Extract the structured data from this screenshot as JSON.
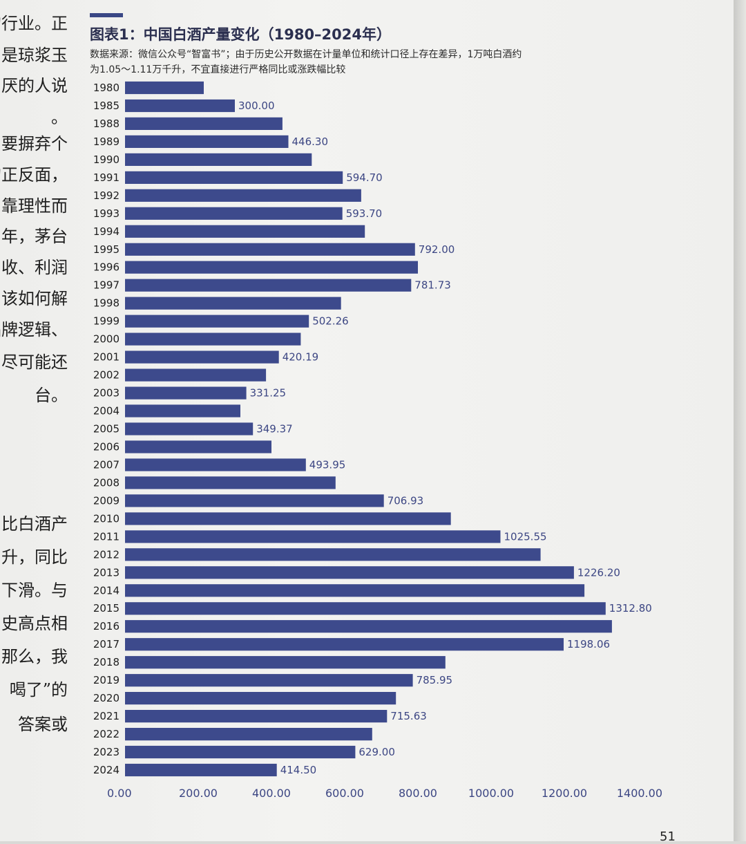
{
  "previous_page_text": [
    "的行业。正",
    "是琼浆玉",
    "厌的人说",
    "。",
    "要摒弃个",
    "的正反面，",
    "靠理性而",
    "年，茅台",
    "收、利润",
    "该如何解",
    "品牌逻辑、",
    "尽可能还",
    "台。",
    "比白酒产",
    "升，同比",
    "下滑。与",
    "史高点相",
    "那么，我",
    "喝了”的",
    "答案或"
  ],
  "chart_data": {
    "type": "bar",
    "orientation": "horizontal",
    "title": "图表1：中国白酒产量变化（1980–2024年）",
    "source_note": [
      "数据来源：微信公众号“智富书”；由于历史公开数据在计量单位和统计口径上存在差异，1万吨白酒约",
      "为1.05～1.11万千升，不宜直接进行严格同比或涨跌幅比较"
    ],
    "categories": [
      "1980",
      "1985",
      "1988",
      "1989",
      "1990",
      "1991",
      "1992",
      "1993",
      "1994",
      "1995",
      "1996",
      "1997",
      "1998",
      "1999",
      "2000",
      "2001",
      "2002",
      "2003",
      "2004",
      "2005",
      "2006",
      "2007",
      "2008",
      "2009",
      "2010",
      "2011",
      "2012",
      "2013",
      "2014",
      "2015",
      "2016",
      "2017",
      "2018",
      "2019",
      "2020",
      "2021",
      "2022",
      "2023",
      "2024"
    ],
    "values": [
      215,
      300,
      430,
      446.3,
      510,
      594.7,
      645,
      593.7,
      655,
      792.0,
      800,
      781.73,
      590,
      502.26,
      480,
      420.19,
      385,
      331.25,
      315,
      349.37,
      400,
      493.95,
      575,
      706.93,
      890,
      1025.55,
      1135,
      1226.2,
      1255,
      1312.8,
      1330,
      1198.06,
      875,
      785.95,
      740,
      715.63,
      675,
      629.0,
      414.5
    ],
    "labels": [
      "",
      "300.00",
      "",
      "446.30",
      "",
      "594.70",
      "",
      "593.70",
      "",
      "792.00",
      "",
      "781.73",
      "",
      "502.26",
      "",
      "420.19",
      "",
      "331.25",
      "",
      "349.37",
      "",
      "493.95",
      "",
      "706.93",
      "",
      "1025.55",
      "",
      "1226.20",
      "",
      "1312.80",
      "",
      "1198.06",
      "",
      "785.95",
      "",
      "715.63",
      "",
      "629.00",
      "414.50"
    ],
    "xticks": [
      "0.00",
      "200.00",
      "400.00",
      "600.00",
      "800.00",
      "1000.00",
      "1200.00",
      "1400.00"
    ],
    "xlim": [
      0,
      1400
    ],
    "grid": false,
    "colors": {
      "bar": "#3d4a8c",
      "value_label": "#3c4683",
      "title": "#2b2f4f"
    }
  },
  "page_number": "51"
}
